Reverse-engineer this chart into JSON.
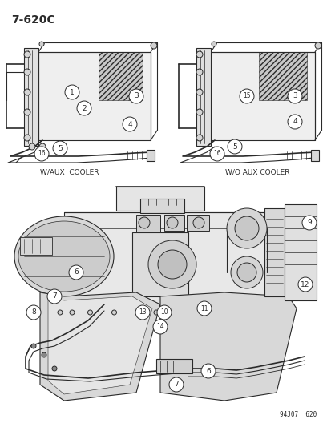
{
  "title": "7-620C",
  "bg": "#ffffff",
  "lc": "#2a2a2a",
  "wm": "94J07  620",
  "ll": "W/AUX  COOLER",
  "rl": "W/O AUX COOLER",
  "figsize": [
    4.14,
    5.33
  ],
  "dpi": 100
}
